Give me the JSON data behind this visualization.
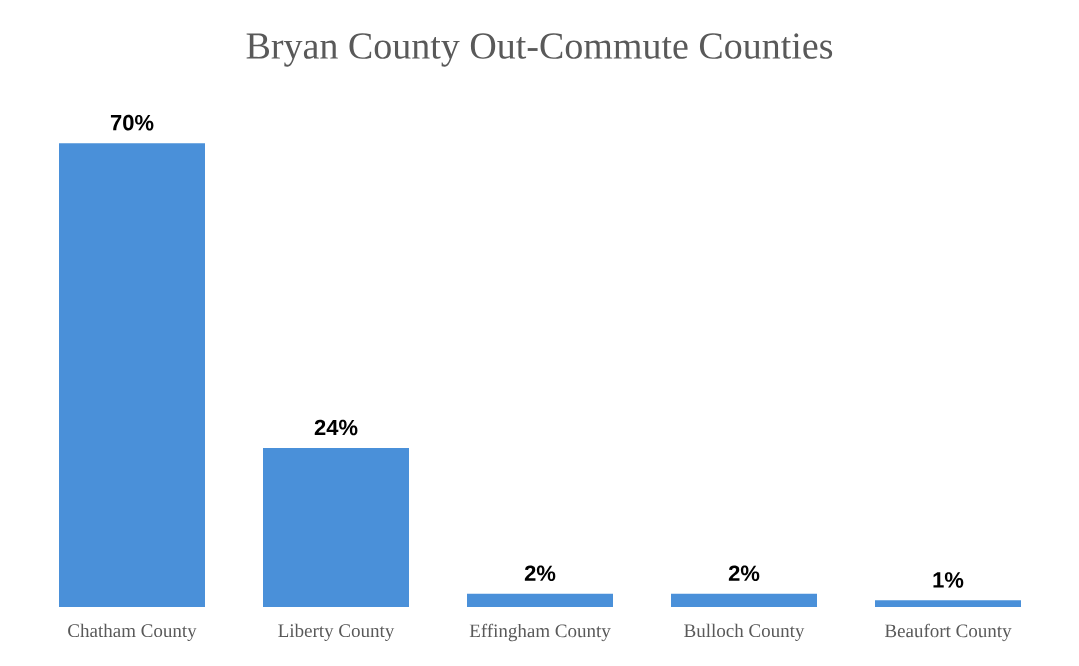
{
  "chart_data": {
    "type": "bar",
    "title": "Bryan County Out-Commute Counties",
    "categories": [
      "Chatham County",
      "Liberty County",
      "Effingham County",
      "Bulloch County",
      "Beaufort County"
    ],
    "values": [
      70,
      24,
      2,
      2,
      1
    ],
    "value_labels": [
      "70%",
      "24%",
      "2%",
      "2%",
      "1%"
    ],
    "color": "#4a90d9"
  }
}
